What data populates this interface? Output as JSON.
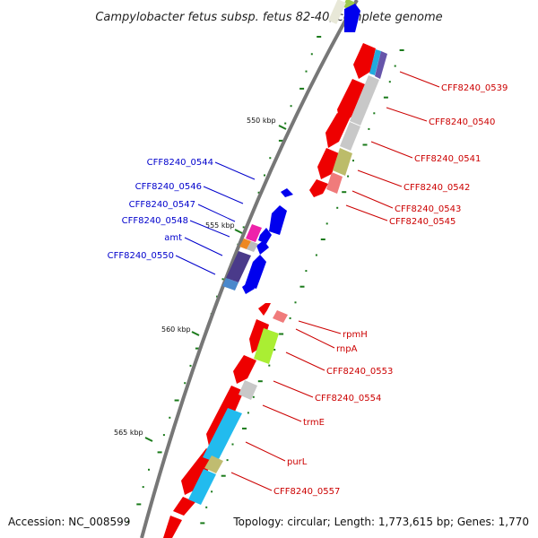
{
  "header": {
    "title": "Campylobacter fetus subsp. fetus 82-40, complete genome"
  },
  "footer": {
    "accession": "Accession: NC_008599",
    "topology": "Topology: circular; Length: 1,773,615 bp; Genes: 1,770"
  },
  "colors": {
    "forward_gene": "#0000ee",
    "reverse_gene": "#ee0000",
    "backbone": "#777777",
    "gc_dots": "#1a7a1a",
    "label_forward": "#0000cc",
    "label_reverse": "#cc0000"
  },
  "ticks": [
    "550 kbp",
    "555 kbp",
    "560 kbp",
    "565 kbp"
  ],
  "forward_labels": [
    "CFF8240_0544",
    "CFF8240_0546",
    "CFF8240_0547",
    "CFF8240_0548",
    "amt",
    "CFF8240_0550"
  ],
  "reverse_labels": [
    "CFF8240_0539",
    "CFF8240_0540",
    "CFF8240_0541",
    "CFF8240_0542",
    "CFF8240_0543",
    "CFF8240_0545",
    "rpmH",
    "rnpA",
    "CFF8240_0553",
    "CFF8240_0554",
    "trmE",
    "purL",
    "CFF8240_0557"
  ]
}
